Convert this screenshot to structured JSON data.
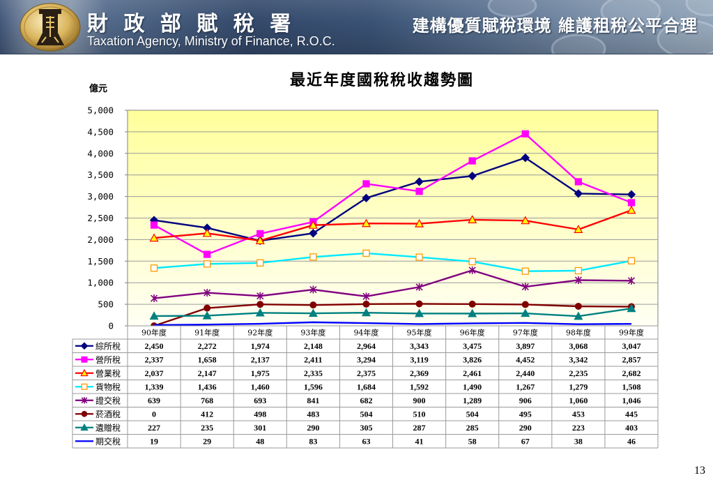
{
  "header": {
    "title_zh": "財 政 部 賦 稅 署",
    "title_en": "Taxation Agency, Ministry of Finance, R.O.C.",
    "slogan": "建構優質賦稅環境 維護租稅公平合理"
  },
  "page_number": "13",
  "chart_data": {
    "type": "line",
    "title": "最近年度國稅稅收趨勢圖",
    "ylabel": "億元",
    "ylim": [
      0,
      5000
    ],
    "yticks": [
      0,
      500,
      1000,
      1500,
      2000,
      2500,
      3000,
      3500,
      4000,
      4500,
      5000
    ],
    "grid": true,
    "legend": "bottom",
    "data_table": true,
    "plot_background": [
      "#FFFF9C",
      "#FFFFF4"
    ],
    "categories": [
      "90年度",
      "91年度",
      "92年度",
      "93年度",
      "94年度",
      "95年度",
      "96年度",
      "97年度",
      "98年度",
      "99年度"
    ],
    "series": [
      {
        "name": "綜所稅",
        "values": [
          2450,
          2272,
          1974,
          2148,
          2964,
          3343,
          3475,
          3897,
          3068,
          3047
        ],
        "color": "#000080",
        "marker": "diamond",
        "marker_fill": "#000080",
        "marker_stroke": "#000080"
      },
      {
        "name": "營所稅",
        "values": [
          2337,
          1658,
          2137,
          2411,
          3294,
          3119,
          3826,
          4452,
          3342,
          2857
        ],
        "color": "#FF00FF",
        "marker": "square",
        "marker_fill": "#FF00FF",
        "marker_stroke": "#FF00FF"
      },
      {
        "name": "營業稅",
        "values": [
          2037,
          2147,
          1975,
          2335,
          2375,
          2369,
          2461,
          2440,
          2235,
          2682
        ],
        "color": "#FF0000",
        "marker": "triangle",
        "marker_fill": "#FFFF00",
        "marker_stroke": "#FF0000"
      },
      {
        "name": "貨物稅",
        "values": [
          1339,
          1436,
          1460,
          1596,
          1684,
          1592,
          1490,
          1267,
          1279,
          1508
        ],
        "color": "#00E8FF",
        "marker": "square",
        "marker_fill": "#FFFFFF",
        "marker_stroke": "#FF9900"
      },
      {
        "name": "證交稅",
        "values": [
          639,
          768,
          693,
          841,
          682,
          900,
          1289,
          906,
          1060,
          1046
        ],
        "color": "#800080",
        "marker": "asterisk",
        "marker_stroke": "#800080"
      },
      {
        "name": "菸酒稅",
        "values": [
          0,
          412,
          498,
          483,
          504,
          510,
          504,
          495,
          453,
          445
        ],
        "color": "#800000",
        "marker": "circle",
        "marker_fill": "#800000",
        "marker_stroke": "#800000"
      },
      {
        "name": "遺贈稅",
        "values": [
          227,
          235,
          301,
          290,
          305,
          287,
          285,
          290,
          223,
          403
        ],
        "color": "#008080",
        "marker": "triangle",
        "marker_fill": "#008080",
        "marker_stroke": "#008080"
      },
      {
        "name": "期交稅",
        "values": [
          19,
          29,
          48,
          83,
          63,
          41,
          58,
          67,
          38,
          46
        ],
        "color": "#0000FF",
        "marker": "none"
      }
    ]
  }
}
